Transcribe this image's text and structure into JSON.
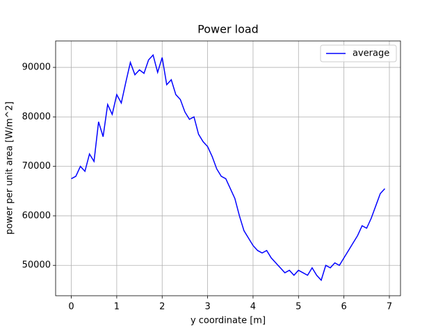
{
  "chart_data": {
    "type": "line",
    "title": "Power load",
    "xlabel": "y coordinate [m]",
    "ylabel": "power per unit area [W/m^2]",
    "x": [
      0,
      0.1,
      0.2,
      0.3,
      0.4,
      0.5,
      0.6,
      0.7,
      0.8,
      0.9,
      1.0,
      1.1,
      1.2,
      1.3,
      1.4,
      1.5,
      1.6,
      1.7,
      1.8,
      1.9,
      2.0,
      2.1,
      2.2,
      2.3,
      2.4,
      2.5,
      2.6,
      2.7,
      2.8,
      2.9,
      3.0,
      3.1,
      3.2,
      3.3,
      3.4,
      3.5,
      3.6,
      3.7,
      3.8,
      3.9,
      4.0,
      4.1,
      4.2,
      4.3,
      4.4,
      4.5,
      4.6,
      4.7,
      4.8,
      4.9,
      5.0,
      5.1,
      5.2,
      5.3,
      5.4,
      5.5,
      5.6,
      5.7,
      5.8,
      5.9,
      6.0,
      6.1,
      6.2,
      6.3,
      6.4,
      6.5,
      6.6,
      6.7,
      6.8,
      6.9
    ],
    "series": [
      {
        "name": "average",
        "color": "#0000ff",
        "values": [
          67500,
          68000,
          70000,
          69000,
          72500,
          71000,
          79000,
          76000,
          82500,
          80500,
          84500,
          82800,
          87000,
          91000,
          88500,
          89500,
          88800,
          91500,
          92500,
          89000,
          92000,
          86500,
          87500,
          84500,
          83500,
          81000,
          79500,
          80000,
          76500,
          75000,
          74000,
          72000,
          69500,
          68000,
          67500,
          65500,
          63500,
          60000,
          57000,
          55500,
          54000,
          53000,
          52500,
          53000,
          51500,
          50500,
          49500,
          48500,
          49000,
          48000,
          49000,
          48500,
          48000,
          49500,
          48000,
          47000,
          50000,
          49500,
          50500,
          50000,
          51500,
          53000,
          54500,
          56000,
          58000,
          57500,
          59500,
          62000,
          64500,
          65500
        ]
      }
    ],
    "xlim": [
      -0.345,
      7.245
    ],
    "ylim": [
      43860,
      95340
    ],
    "xticks": [
      0,
      1,
      2,
      3,
      4,
      5,
      6,
      7
    ],
    "yticks": [
      50000,
      60000,
      70000,
      80000,
      90000
    ],
    "grid": true,
    "legend": "upper right"
  }
}
